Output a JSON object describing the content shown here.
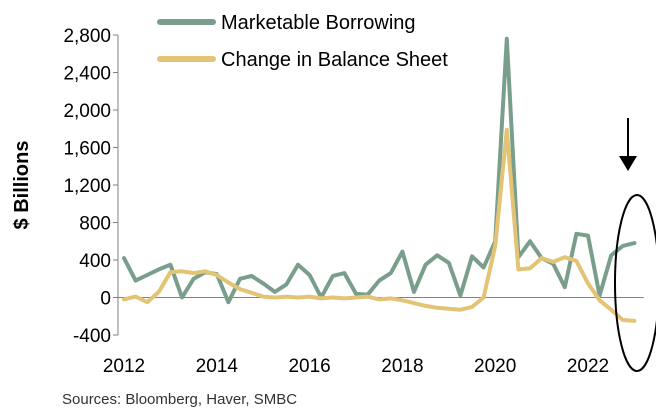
{
  "chart_data": {
    "type": "line",
    "title": "",
    "xlabel": "",
    "ylabel": "$ Billions",
    "ylim": [
      -400,
      2800
    ],
    "yticks": [
      -400,
      0,
      400,
      800,
      1200,
      1600,
      2000,
      2400,
      2800
    ],
    "ytick_labels": [
      "-400",
      "0",
      "400",
      "800",
      "1,200",
      "1,600",
      "2,000",
      "2,400",
      "2,800"
    ],
    "xlim": [
      2012,
      2023.2
    ],
    "xticks": [
      2012,
      2014,
      2016,
      2018,
      2020,
      2022
    ],
    "xtick_labels": [
      "2012",
      "2014",
      "2016",
      "2018",
      "2020",
      "2022"
    ],
    "grid": false,
    "legend_position": "top",
    "source": "Sources:  Bloomberg, Haver, SMBC",
    "annotation": "downward arrow over circled latest values (2022-2023)",
    "series": [
      {
        "name": "Marketable Borrowing",
        "color": "#7a9e8c",
        "points": [
          [
            2012.0,
            420
          ],
          [
            2012.25,
            180
          ],
          [
            2012.5,
            240
          ],
          [
            2012.75,
            300
          ],
          [
            2013.0,
            350
          ],
          [
            2013.25,
            0
          ],
          [
            2013.5,
            200
          ],
          [
            2013.75,
            270
          ],
          [
            2014.0,
            250
          ],
          [
            2014.25,
            -50
          ],
          [
            2014.5,
            200
          ],
          [
            2014.75,
            230
          ],
          [
            2015.0,
            150
          ],
          [
            2015.25,
            60
          ],
          [
            2015.5,
            140
          ],
          [
            2015.75,
            350
          ],
          [
            2016.0,
            240
          ],
          [
            2016.25,
            0
          ],
          [
            2016.5,
            230
          ],
          [
            2016.75,
            260
          ],
          [
            2017.0,
            40
          ],
          [
            2017.25,
            30
          ],
          [
            2017.5,
            180
          ],
          [
            2017.75,
            260
          ],
          [
            2018.0,
            490
          ],
          [
            2018.25,
            60
          ],
          [
            2018.5,
            350
          ],
          [
            2018.75,
            450
          ],
          [
            2019.0,
            370
          ],
          [
            2019.25,
            20
          ],
          [
            2019.5,
            440
          ],
          [
            2019.75,
            320
          ],
          [
            2020.0,
            600
          ],
          [
            2020.25,
            2760
          ],
          [
            2020.5,
            430
          ],
          [
            2020.75,
            600
          ],
          [
            2021.0,
            420
          ],
          [
            2021.25,
            360
          ],
          [
            2021.5,
            110
          ],
          [
            2021.75,
            680
          ],
          [
            2022.0,
            660
          ],
          [
            2022.25,
            20
          ],
          [
            2022.5,
            450
          ],
          [
            2022.75,
            550
          ],
          [
            2023.0,
            580
          ]
        ]
      },
      {
        "name": "Change in Balance Sheet",
        "color": "#e3c374",
        "points": [
          [
            2012.0,
            -20
          ],
          [
            2012.25,
            10
          ],
          [
            2012.5,
            -50
          ],
          [
            2012.75,
            60
          ],
          [
            2013.0,
            270
          ],
          [
            2013.25,
            280
          ],
          [
            2013.5,
            260
          ],
          [
            2013.75,
            280
          ],
          [
            2014.0,
            240
          ],
          [
            2014.25,
            160
          ],
          [
            2014.5,
            90
          ],
          [
            2014.75,
            50
          ],
          [
            2015.0,
            10
          ],
          [
            2015.25,
            0
          ],
          [
            2015.5,
            10
          ],
          [
            2015.75,
            0
          ],
          [
            2016.0,
            10
          ],
          [
            2016.25,
            -10
          ],
          [
            2016.5,
            0
          ],
          [
            2016.75,
            -10
          ],
          [
            2017.0,
            0
          ],
          [
            2017.25,
            10
          ],
          [
            2017.5,
            -20
          ],
          [
            2017.75,
            -10
          ],
          [
            2018.0,
            -30
          ],
          [
            2018.25,
            -60
          ],
          [
            2018.5,
            -90
          ],
          [
            2018.75,
            -110
          ],
          [
            2019.0,
            -120
          ],
          [
            2019.25,
            -130
          ],
          [
            2019.5,
            -100
          ],
          [
            2019.75,
            0
          ],
          [
            2020.0,
            550
          ],
          [
            2020.25,
            1790
          ],
          [
            2020.5,
            300
          ],
          [
            2020.75,
            310
          ],
          [
            2021.0,
            420
          ],
          [
            2021.25,
            380
          ],
          [
            2021.5,
            430
          ],
          [
            2021.75,
            390
          ],
          [
            2022.0,
            150
          ],
          [
            2022.25,
            -30
          ],
          [
            2022.5,
            -130
          ],
          [
            2022.75,
            -240
          ],
          [
            2023.0,
            -250
          ]
        ]
      }
    ]
  }
}
